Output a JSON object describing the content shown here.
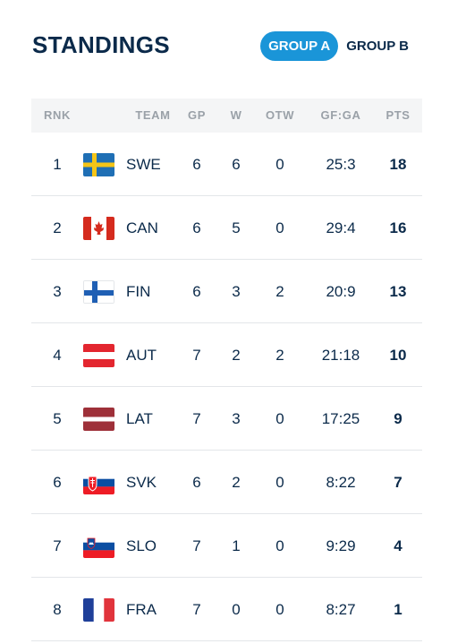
{
  "header": {
    "title": "STANDINGS",
    "tabs": [
      {
        "label": "GROUP A",
        "active": true
      },
      {
        "label": "GROUP B",
        "active": false
      }
    ]
  },
  "table": {
    "columns": [
      "RNK",
      "TEAM",
      "GP",
      "W",
      "OTW",
      "GF:GA",
      "PTS"
    ],
    "rows": [
      {
        "rank": "1",
        "flag": "sweden-flag-icon",
        "team": "SWE",
        "gp": "6",
        "w": "6",
        "otw": "0",
        "gfga": "25:3",
        "pts": "18"
      },
      {
        "rank": "2",
        "flag": "canada-flag-icon",
        "team": "CAN",
        "gp": "6",
        "w": "5",
        "otw": "0",
        "gfga": "29:4",
        "pts": "16"
      },
      {
        "rank": "3",
        "flag": "finland-flag-icon",
        "team": "FIN",
        "gp": "6",
        "w": "3",
        "otw": "2",
        "gfga": "20:9",
        "pts": "13"
      },
      {
        "rank": "4",
        "flag": "austria-flag-icon",
        "team": "AUT",
        "gp": "7",
        "w": "2",
        "otw": "2",
        "gfga": "21:18",
        "pts": "10"
      },
      {
        "rank": "5",
        "flag": "latvia-flag-icon",
        "team": "LAT",
        "gp": "7",
        "w": "3",
        "otw": "0",
        "gfga": "17:25",
        "pts": "9"
      },
      {
        "rank": "6",
        "flag": "slovakia-flag-icon",
        "team": "SVK",
        "gp": "6",
        "w": "2",
        "otw": "0",
        "gfga": "8:22",
        "pts": "7"
      },
      {
        "rank": "7",
        "flag": "slovenia-flag-icon",
        "team": "SLO",
        "gp": "7",
        "w": "1",
        "otw": "0",
        "gfga": "9:29",
        "pts": "4"
      },
      {
        "rank": "8",
        "flag": "france-flag-icon",
        "team": "FRA",
        "gp": "7",
        "w": "0",
        "otw": "0",
        "gfga": "8:27",
        "pts": "1"
      }
    ]
  },
  "colors": {
    "accent": "#1a95d8",
    "text": "#0b2a4a",
    "header_bg": "#f4f5f6",
    "header_text": "#9aa1a8"
  }
}
